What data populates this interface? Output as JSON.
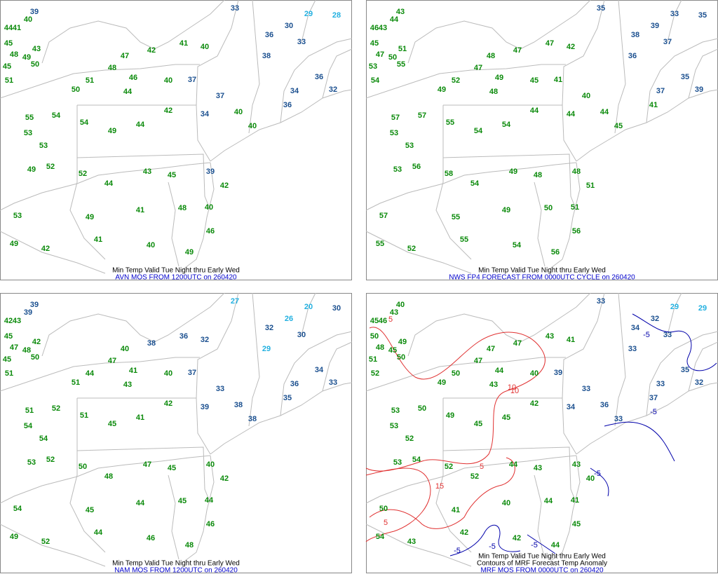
{
  "panels": [
    {
      "title": "Min Temp Valid Tue Night thru Early Wed",
      "subtitle": "AVN MOS FROM 1200UTC on 260420",
      "stations": [
        39,
        40,
        44,
        41,
        45,
        43,
        48,
        49,
        45,
        50,
        51,
        51,
        50,
        48,
        47,
        42,
        41,
        40,
        46,
        40,
        37,
        44,
        37,
        33,
        36,
        30,
        38,
        33,
        36,
        34,
        32,
        40,
        34,
        42,
        44,
        49,
        54,
        54,
        55,
        53,
        53,
        49,
        52,
        52,
        44,
        43,
        45,
        39,
        42,
        40,
        48,
        41,
        49,
        53,
        49,
        42,
        41,
        40,
        49,
        46,
        40,
        36,
        29,
        28
      ]
    },
    {
      "title": "Min Temp Valid Tue Night thru Early Wed",
      "subtitle": "NWS FP4 FORECAST FROM 0000UTC CYCLE on 260420",
      "stations": [
        43,
        44,
        46,
        43,
        45,
        51,
        47,
        50,
        53,
        55,
        54,
        52,
        49,
        47,
        48,
        47,
        47,
        42,
        49,
        45,
        41,
        48,
        40,
        35,
        38,
        39,
        36,
        37,
        35,
        37,
        39,
        44,
        44,
        44,
        54,
        54,
        55,
        57,
        57,
        53,
        53,
        53,
        56,
        58,
        54,
        49,
        48,
        48,
        51,
        51,
        50,
        49,
        55,
        57,
        55,
        52,
        55,
        54,
        56,
        56,
        45,
        41,
        33,
        35
      ]
    },
    {
      "title": "Min Temp Valid Tue Night thru Early Wed",
      "subtitle": "NAM MOS FROM 1200UTC on 260420",
      "stations": [
        39,
        39,
        42,
        43,
        45,
        42,
        47,
        48,
        45,
        50,
        51,
        44,
        51,
        47,
        40,
        38,
        36,
        32,
        41,
        40,
        37,
        43,
        33,
        27,
        32,
        26,
        29,
        30,
        34,
        36,
        33,
        38,
        39,
        42,
        41,
        45,
        51,
        52,
        51,
        54,
        54,
        53,
        52,
        50,
        48,
        47,
        45,
        40,
        42,
        44,
        45,
        44,
        45,
        54,
        49,
        52,
        44,
        46,
        48,
        46,
        38,
        35,
        20,
        30
      ]
    },
    {
      "title": "Min Temp Valid Tue Night thru Early Wed",
      "contours_title": "Contours of MRF Forecast Temp Anomaly",
      "subtitle": "MRF MOS FROM 0000UTC on 260420",
      "stations": [
        40,
        43,
        45,
        46,
        50,
        49,
        48,
        45,
        51,
        50,
        52,
        50,
        49,
        47,
        47,
        47,
        43,
        41,
        44,
        40,
        39,
        43,
        33,
        33,
        34,
        32,
        33,
        33,
        35,
        33,
        32,
        36,
        34,
        42,
        45,
        45,
        49,
        50,
        53,
        53,
        52,
        53,
        54,
        52,
        52,
        44,
        43,
        43,
        40,
        41,
        44,
        40,
        41,
        50,
        54,
        43,
        42,
        42,
        44,
        45,
        33,
        37,
        29,
        29
      ],
      "contour_labels": [
        5,
        10,
        10,
        5,
        15,
        5,
        -5,
        -5,
        -5,
        -5,
        -5,
        -5
      ]
    }
  ]
}
